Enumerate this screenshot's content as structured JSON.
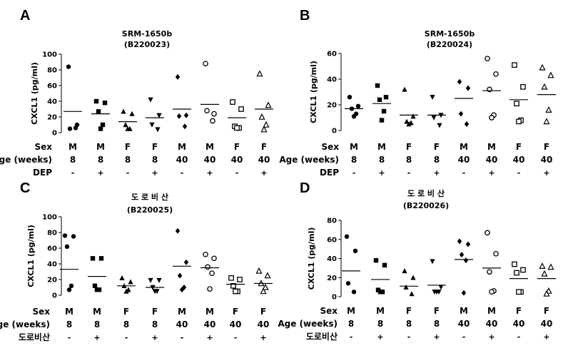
{
  "chart_data": [
    {
      "type": "scatter",
      "panel": "A",
      "title": "SRM-1650b",
      "subtitle": "(B220023)",
      "ylabel": "CXCL1 (pg/ml)",
      "ylim": [
        0,
        100
      ],
      "yticks": [
        "0",
        "20",
        "40",
        "60",
        "80",
        "100"
      ],
      "yticks_num": [
        0,
        20,
        40,
        60,
        80,
        100
      ],
      "row_labels": [
        "Sex",
        "Age (weeks)",
        "DEP"
      ],
      "sex": [
        "M",
        "M",
        "F",
        "F",
        "M",
        "M",
        "F",
        "F"
      ],
      "age": [
        "8",
        "8",
        "8",
        "8",
        "40",
        "40",
        "40",
        "40"
      ],
      "treatment": [
        "-",
        "+",
        "-",
        "+",
        "-",
        "+",
        "-",
        "+"
      ],
      "markers": [
        "dot",
        "square",
        "triangle",
        "tri-down",
        "diamond",
        "open-circle",
        "open-square",
        "open-triangle"
      ],
      "points": [
        [
          84,
          10,
          5,
          6
        ],
        [
          40,
          38,
          27,
          10,
          5
        ],
        [
          27,
          24,
          10,
          5,
          5
        ],
        [
          42,
          22,
          10,
          4
        ],
        [
          71,
          22,
          21,
          8
        ],
        [
          88,
          24,
          28,
          15
        ],
        [
          39,
          30,
          8,
          6,
          6
        ],
        [
          75,
          35,
          20,
          10,
          4
        ]
      ],
      "means": [
        27,
        24,
        14,
        19,
        30,
        36,
        19,
        30
      ]
    },
    {
      "type": "scatter",
      "panel": "B",
      "title": "SRM-1650b",
      "subtitle": "(B220024)",
      "ylabel": "CXCL1 (pg/ml)",
      "ylim": [
        0,
        60
      ],
      "yticks": [
        "0",
        "20",
        "40",
        "60"
      ],
      "yticks_num": [
        0,
        20,
        40,
        60
      ],
      "row_labels": [
        "Sex",
        "Age (weeks)",
        "DEP"
      ],
      "sex": [
        "M",
        "M",
        "F",
        "F",
        "M",
        "M",
        "F",
        "F"
      ],
      "age": [
        "8",
        "8",
        "8",
        "8",
        "40",
        "40",
        "40",
        "40"
      ],
      "treatment": [
        "-",
        "+",
        "-",
        "+",
        "-",
        "+",
        "-",
        "+"
      ],
      "markers": [
        "dot",
        "square",
        "triangle",
        "tri-down",
        "diamond",
        "open-circle",
        "open-square",
        "open-triangle"
      ],
      "points": [
        [
          26,
          19,
          17,
          13,
          11
        ],
        [
          35,
          26,
          24,
          15,
          8
        ],
        [
          32,
          11,
          7,
          6,
          5
        ],
        [
          26,
          12,
          10,
          4
        ],
        [
          38,
          33,
          13,
          5
        ],
        [
          56,
          44,
          32,
          12,
          10
        ],
        [
          51,
          34,
          21,
          8,
          7
        ],
        [
          49,
          43,
          34,
          16,
          7
        ]
      ],
      "means": [
        17,
        21,
        12,
        12,
        25,
        31,
        24,
        28
      ]
    },
    {
      "type": "scatter",
      "panel": "C",
      "title": "도 로 비 산",
      "subtitle": "(B220025)",
      "ylabel": "CXCL1 (pg/ml)",
      "ylim": [
        0,
        100
      ],
      "yticks": [
        "0",
        "20",
        "40",
        "60",
        "80",
        "100"
      ],
      "yticks_num": [
        0,
        20,
        40,
        60,
        80,
        100
      ],
      "row_labels": [
        "Sex",
        "Age (weeks)",
        "도로비산"
      ],
      "sex": [
        "M",
        "M",
        "F",
        "F",
        "M",
        "M",
        "F",
        "F"
      ],
      "age": [
        "8",
        "8",
        "8",
        "8",
        "40",
        "40",
        "40",
        "40"
      ],
      "treatment": [
        "-",
        "+",
        "-",
        "+",
        "-",
        "+",
        "-",
        "+"
      ],
      "markers": [
        "dot",
        "square",
        "triangle",
        "tri-down",
        "diamond",
        "open-circle",
        "open-square",
        "open-triangle"
      ],
      "points": [
        [
          76,
          75,
          62,
          12,
          7
        ],
        [
          47,
          47,
          12,
          7,
          7
        ],
        [
          22,
          17,
          12,
          7,
          5
        ],
        [
          19,
          19,
          10,
          5,
          5
        ],
        [
          82,
          42,
          25,
          10,
          7
        ],
        [
          52,
          47,
          36,
          28,
          8
        ],
        [
          22,
          20,
          12,
          5,
          5
        ],
        [
          31,
          25,
          15,
          10,
          5
        ]
      ],
      "means": [
        33,
        24,
        12,
        10,
        37,
        35,
        14,
        15
      ]
    },
    {
      "type": "scatter",
      "panel": "D",
      "title": "도 로 비 산",
      "subtitle": "(B220026)",
      "ylabel": "CXCL1 (pg/ml)",
      "ylim": [
        0,
        80
      ],
      "yticks": [
        "0",
        "20",
        "40",
        "60",
        "80"
      ],
      "yticks_num": [
        0,
        20,
        40,
        60,
        80
      ],
      "row_labels": [
        "Sex",
        "Age (weeks)",
        "도로비산"
      ],
      "sex": [
        "M",
        "M",
        "F",
        "F",
        "M",
        "M",
        "F",
        "F"
      ],
      "age": [
        "8",
        "8",
        "8",
        "8",
        "40",
        "40",
        "40",
        "40"
      ],
      "treatment": [
        "-",
        "+",
        "-",
        "+",
        "-",
        "+",
        "-",
        "+"
      ],
      "markers": [
        "dot",
        "square",
        "triangle",
        "tri-down",
        "diamond",
        "open-circle",
        "open-square",
        "open-triangle"
      ],
      "points": [
        [
          63,
          48,
          14,
          5
        ],
        [
          38,
          33,
          7,
          5,
          5
        ],
        [
          27,
          20,
          10,
          3
        ],
        [
          37,
          10,
          5,
          5,
          5
        ],
        [
          58,
          55,
          44,
          38,
          4
        ],
        [
          67,
          45,
          26,
          6,
          5
        ],
        [
          34,
          28,
          25,
          5,
          5
        ],
        [
          32,
          31,
          24,
          6,
          3
        ]
      ],
      "means": [
        27,
        18,
        11,
        12,
        39,
        30,
        19,
        19
      ]
    }
  ],
  "style": {
    "color": "#000000"
  }
}
